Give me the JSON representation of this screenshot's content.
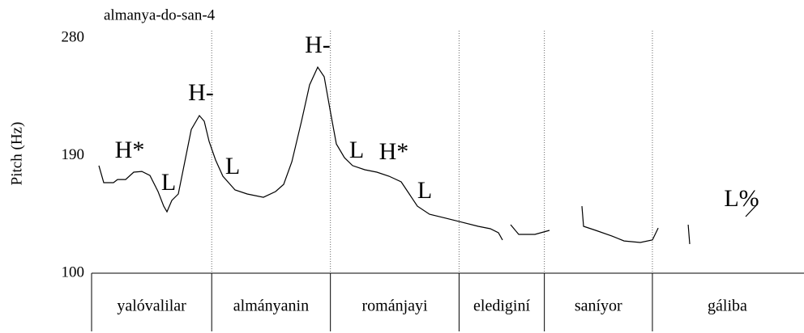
{
  "chart_data": {
    "type": "line",
    "title": "almanya-do-san-4",
    "y_label": "Pitch (Hz)",
    "ylim": [
      100,
      280
    ],
    "yticks": [
      100,
      190,
      280
    ],
    "xlim": [
      0,
      100
    ],
    "series": [
      {
        "color": "#000000",
        "x": [
          1.03,
          1.71,
          3.08,
          3.65,
          4.79,
          5.93,
          7.07,
          8.21,
          9.35,
          10.15,
          10.6,
          11.29,
          12.2,
          13.11,
          14.03,
          15.17,
          15.85,
          16.53,
          17.45,
          18.47,
          20.18,
          21.89,
          24.17,
          25.88,
          27.02,
          28.17,
          29.53,
          30.67,
          31.81,
          32.73,
          33.64,
          34.44,
          35.58,
          36.72,
          38.43,
          40.14,
          41.85,
          43.56,
          44.7,
          45.84,
          47.55,
          49.83,
          52.11,
          54.39,
          56.1,
          57.24,
          57.81,
          58.4,
          58.95,
          60.09,
          62.37,
          64.42,
          66.7,
          68.99,
          69.21,
          70.92,
          73.21,
          74.92,
          77.2,
          78.91,
          79.71,
          81.8,
          83.93,
          84.15,
          88.0,
          92.02,
          93.73
        ],
        "values": [
          182.3,
          169.3,
          169.3,
          171.7,
          171.7,
          177.3,
          177.9,
          174.8,
          162.5,
          151.3,
          147,
          155.7,
          160.6,
          185.3,
          210,
          220.6,
          216.3,
          200.8,
          186.6,
          174.2,
          163.7,
          160.6,
          158.1,
          162.5,
          168,
          185.3,
          216.3,
          244.1,
          257.7,
          250.3,
          222.4,
          198.9,
          188.4,
          182.3,
          179.2,
          177.3,
          174.2,
          169.9,
          160.6,
          151.3,
          145.1,
          142.1,
          139,
          135.9,
          134,
          130.9,
          125.4,
          null,
          137.1,
          129.7,
          129.7,
          132.8,
          null,
          151.3,
          135.9,
          132.8,
          128.4,
          124.7,
          123.5,
          125.4,
          134.6,
          null,
          137.1,
          122.3,
          null,
          143.3,
          153.2
        ]
      }
    ],
    "annotations": [
      {
        "text": "H*",
        "x": 5.36,
        "y": 192.8
      },
      {
        "text": "L",
        "x": 10.83,
        "y": 168
      },
      {
        "text": "H-",
        "x": 15.39,
        "y": 236.7
      },
      {
        "text": "L",
        "x": 19.84,
        "y": 180.4
      },
      {
        "text": "H-",
        "x": 31.81,
        "y": 273.2
      },
      {
        "text": "L",
        "x": 37.29,
        "y": 192.8
      },
      {
        "text": "H*",
        "x": 42.53,
        "y": 191.5
      },
      {
        "text": "L",
        "x": 46.87,
        "y": 161.8
      },
      {
        "text": "L%",
        "x": 91.45,
        "y": 155.7
      }
    ],
    "words": [
      "yalóvalilar",
      "almányanin",
      "románjayi",
      "elediginí",
      "saníyor",
      "gáliba"
    ],
    "boundaries": [
      16.9,
      33.6,
      51.7,
      63.7,
      78.9
    ]
  }
}
